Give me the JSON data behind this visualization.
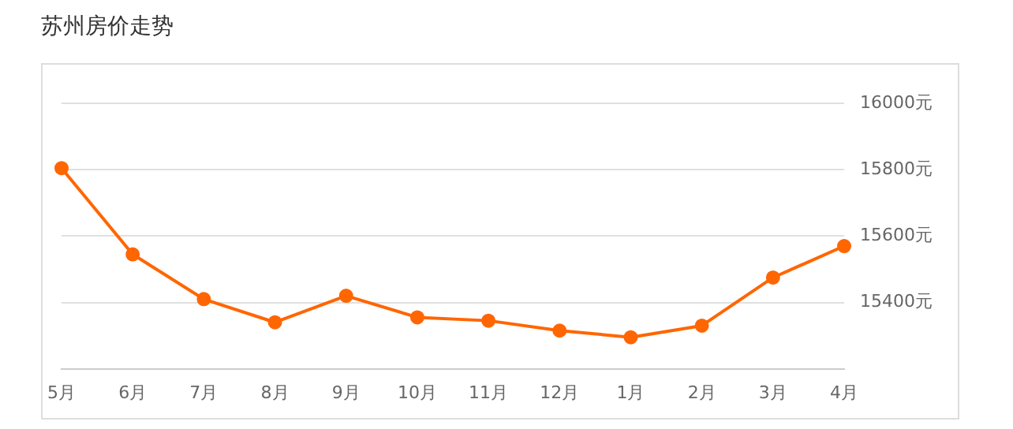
{
  "chart_data": {
    "type": "line",
    "title": "苏州房价走势",
    "categories": [
      "5月",
      "6月",
      "7月",
      "8月",
      "9月",
      "10月",
      "11月",
      "12月",
      "1月",
      "2月",
      "3月",
      "4月"
    ],
    "series": [
      {
        "color": "#ff6600",
        "values": [
          15805,
          15545,
          15410,
          15340,
          15420,
          15355,
          15345,
          15315,
          15295,
          15330,
          15475,
          15570
        ]
      }
    ],
    "ylim": [
      15200,
      16000
    ],
    "yticks": [
      {
        "value": 15200,
        "label": null
      },
      {
        "value": 15400,
        "label": "15400元"
      },
      {
        "value": 15600,
        "label": "15600元"
      },
      {
        "value": 15800,
        "label": "15800元"
      },
      {
        "value": 16000,
        "label": "16000元"
      }
    ],
    "grid": "y",
    "marker": "circle",
    "line_style": "solid",
    "legend": false
  }
}
